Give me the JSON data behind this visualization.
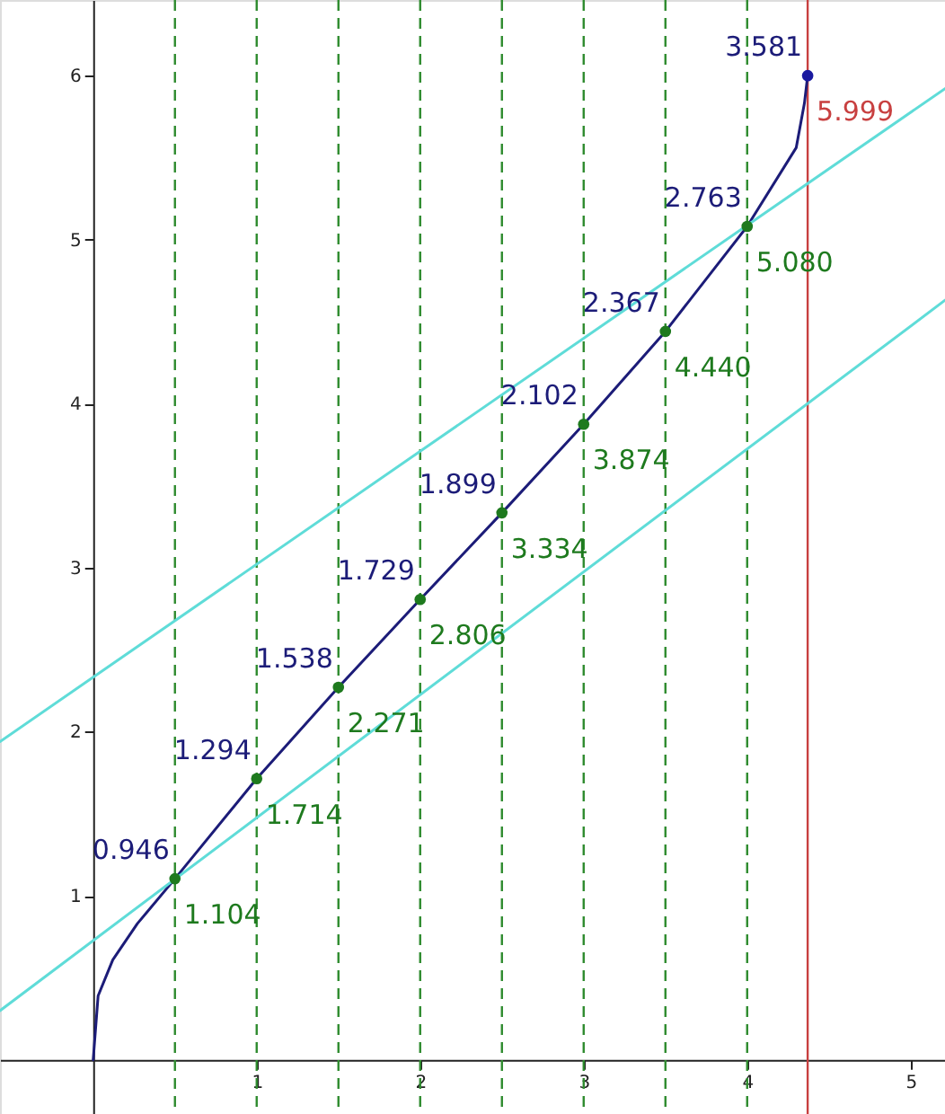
{
  "chart_data": {
    "type": "line",
    "xlim": [
      -0.57,
      5.21
    ],
    "ylim": [
      -0.33,
      6.46
    ],
    "xticks": [
      1,
      2,
      3,
      4,
      5
    ],
    "yticks": [
      1,
      2,
      3,
      4,
      5,
      6
    ],
    "grid": false,
    "series": [
      {
        "color": "#1c1c78",
        "marker": "none",
        "line_style": "solid",
        "x": [
          0,
          0.03,
          0.12,
          0.27,
          0.5,
          1,
          1.5,
          2,
          2.5,
          3,
          3.5,
          4,
          4.3,
          4.35,
          4.37
        ],
        "values": [
          0,
          0.39,
          0.61,
          0.83,
          1.104,
          1.714,
          2.271,
          2.806,
          3.334,
          3.874,
          4.44,
          5.08,
          5.56,
          5.83,
          5.999
        ]
      },
      {
        "type": "line",
        "color": "#5fdcd8",
        "marker": "none",
        "line_style": "solid",
        "x": [
          -0.57,
          5.21
        ],
        "values": [
          1.94,
          5.92
        ]
      },
      {
        "type": "line",
        "color": "#5fdcd8",
        "marker": "none",
        "line_style": "solid",
        "x": [
          -0.57,
          5.21
        ],
        "values": [
          0.3,
          4.63
        ]
      },
      {
        "type": "scatter",
        "color": "#1e7a1e",
        "marker": "circle",
        "x": [
          0.5,
          1,
          1.5,
          2,
          2.5,
          3,
          3.5,
          4
        ],
        "values": [
          1.104,
          1.714,
          2.271,
          2.806,
          3.334,
          3.874,
          4.44,
          5.08
        ],
        "value_labels": [
          "1.104",
          "1.714",
          "2.271",
          "2.806",
          "3.334",
          "3.874",
          "4.440",
          "5.080"
        ]
      },
      {
        "type": "scatter",
        "color": "#1a1aa0",
        "marker": "circle",
        "x": [
          4.37
        ],
        "values": [
          5.999
        ],
        "value_labels": [
          "5.999"
        ]
      }
    ],
    "ref_lines": [
      {
        "axis": "x",
        "value": 0.5,
        "color": "#2e8b2e",
        "line_style": "dashed"
      },
      {
        "axis": "x",
        "value": 1,
        "color": "#2e8b2e",
        "line_style": "dashed"
      },
      {
        "axis": "x",
        "value": 1.5,
        "color": "#2e8b2e",
        "line_style": "dashed"
      },
      {
        "axis": "x",
        "value": 2,
        "color": "#2e8b2e",
        "line_style": "dashed"
      },
      {
        "axis": "x",
        "value": 2.5,
        "color": "#2e8b2e",
        "line_style": "dashed"
      },
      {
        "axis": "x",
        "value": 3,
        "color": "#2e8b2e",
        "line_style": "dashed"
      },
      {
        "axis": "x",
        "value": 3.5,
        "color": "#2e8b2e",
        "line_style": "dashed"
      },
      {
        "axis": "x",
        "value": 4,
        "color": "#2e8b2e",
        "line_style": "dashed"
      },
      {
        "axis": "x",
        "value": 4.37,
        "color": "#c84040",
        "line_style": "solid"
      }
    ],
    "annotations": [
      {
        "text": "0.946",
        "x": 0.5,
        "y": 1.104
      },
      {
        "text": "1.294",
        "x": 1,
        "y": 1.714
      },
      {
        "text": "1.538",
        "x": 1.5,
        "y": 2.271
      },
      {
        "text": "1.729",
        "x": 2,
        "y": 2.806
      },
      {
        "text": "1.899",
        "x": 2.5,
        "y": 3.334
      },
      {
        "text": "2.102",
        "x": 3,
        "y": 3.874
      },
      {
        "text": "2.367",
        "x": 3.5,
        "y": 4.44
      },
      {
        "text": "2.763",
        "x": 4,
        "y": 5.08
      },
      {
        "text": "3.581",
        "x": 4.37,
        "y": 5.999
      }
    ]
  }
}
